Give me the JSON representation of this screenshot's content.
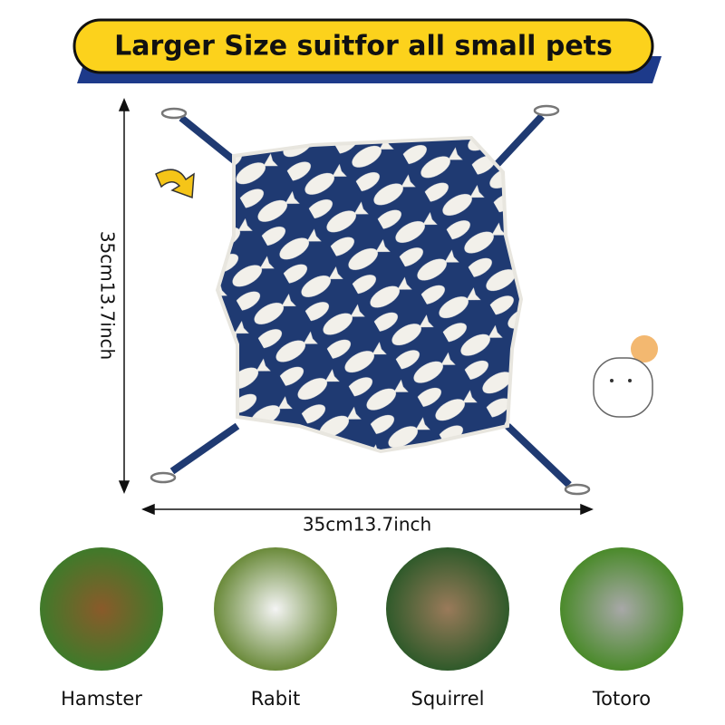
{
  "banner": {
    "title": "Larger Size suitfor all small pets"
  },
  "dimensions": {
    "height": "35cm13.7inch",
    "width": "35cm13.7inch"
  },
  "pets": [
    {
      "label": "Hamster"
    },
    {
      "label": "Rabit"
    },
    {
      "label": "Squirrel"
    },
    {
      "label": "Totoro"
    }
  ]
}
